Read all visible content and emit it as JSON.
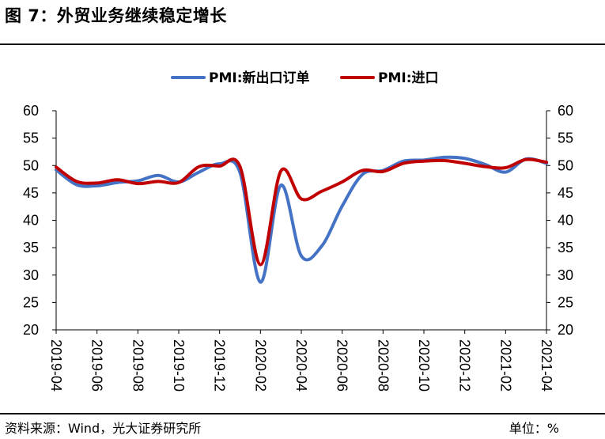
{
  "title": "图 7：外贸业务继续稳定增长",
  "footer": {
    "source": "资料来源：Wind，光大证券研究所",
    "unit": "单位：%"
  },
  "chart_data": {
    "type": "line",
    "title": "",
    "xlabel": "",
    "ylabel": "",
    "ylim": [
      20,
      60
    ],
    "yticks": [
      20,
      25,
      30,
      35,
      40,
      45,
      50,
      55,
      60
    ],
    "y2lim": [
      20,
      60
    ],
    "grid": false,
    "legend_position": "top-center",
    "x": [
      "2019-04",
      "2019-05",
      "2019-06",
      "2019-07",
      "2019-08",
      "2019-09",
      "2019-10",
      "2019-11",
      "2019-12",
      "2020-01",
      "2020-02",
      "2020-03",
      "2020-04",
      "2020-05",
      "2020-06",
      "2020-07",
      "2020-08",
      "2020-09",
      "2020-10",
      "2020-11",
      "2020-12",
      "2021-01",
      "2021-02",
      "2021-03",
      "2021-04"
    ],
    "xticks": [
      "2019-04",
      "2019-06",
      "2019-08",
      "2019-10",
      "2019-12",
      "2020-02",
      "2020-04",
      "2020-06",
      "2020-08",
      "2020-10",
      "2020-12",
      "2021-02",
      "2021-04"
    ],
    "series": [
      {
        "name": "PMI:新出口订单",
        "color": "#4472C4",
        "values": [
          49.2,
          46.5,
          46.3,
          46.9,
          47.2,
          48.2,
          47.0,
          48.8,
          50.3,
          48.7,
          28.7,
          46.4,
          33.5,
          35.3,
          42.6,
          48.4,
          49.1,
          50.8,
          51.0,
          51.5,
          51.3,
          50.2,
          48.8,
          51.2,
          50.4
        ]
      },
      {
        "name": "PMI:进口",
        "color": "#C00000",
        "values": [
          49.7,
          47.1,
          46.8,
          47.4,
          46.7,
          47.1,
          46.9,
          49.8,
          49.9,
          49.8,
          31.9,
          49.0,
          43.9,
          45.3,
          47.0,
          49.1,
          48.9,
          50.4,
          50.8,
          50.9,
          50.4,
          49.8,
          49.6,
          51.1,
          50.6
        ]
      }
    ]
  }
}
